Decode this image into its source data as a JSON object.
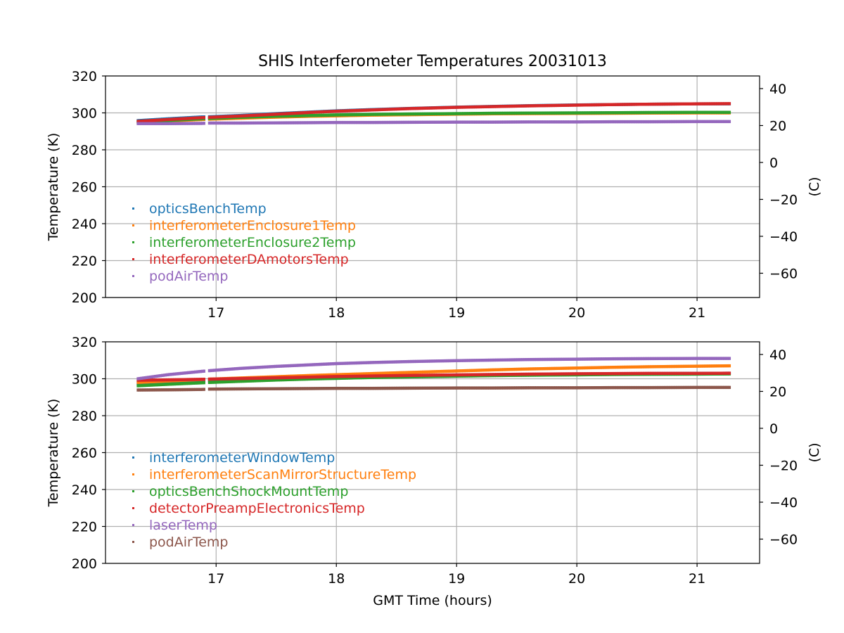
{
  "figure": {
    "title": "SHIS Interferometer Temperatures 20031013",
    "xlabel": "GMT Time (hours)"
  },
  "chart_data": [
    {
      "type": "scatter",
      "title": "SHIS Interferometer Temperatures 20031013",
      "xlabel": "",
      "ylabel": "Temperature (K)",
      "y2label": "(C)",
      "xlim": [
        16.08,
        21.52
      ],
      "ylim": [
        200,
        320
      ],
      "y2lim": [
        -73.15,
        46.85
      ],
      "x_ticks": [
        17,
        18,
        19,
        20,
        21
      ],
      "y_ticks": [
        200,
        220,
        240,
        260,
        280,
        300,
        320
      ],
      "y2_ticks": [
        40,
        20,
        0,
        -20,
        -40,
        -60
      ],
      "grid": true,
      "legend_position": "left",
      "x": [
        16.35,
        16.6,
        16.88,
        16.95,
        17.2,
        17.5,
        17.8,
        18.0,
        18.3,
        18.6,
        19.0,
        19.3,
        19.6,
        20.0,
        20.3,
        20.6,
        21.0,
        21.27
      ],
      "series": [
        {
          "name": "opticsBenchTemp",
          "color": "#1f77b4",
          "values": [
            295.8,
            296.8,
            297.8,
            297.9,
            298.6,
            299.6,
            300.5,
            301.1,
            301.8,
            302.4,
            303.1,
            303.5,
            303.9,
            304.3,
            304.5,
            304.7,
            304.9,
            304.9
          ]
        },
        {
          "name": "interferometerEnclosure1Temp",
          "color": "#ff7f0e",
          "values": [
            294.9,
            295.6,
            296.4,
            296.6,
            297.1,
            297.7,
            298.2,
            298.4,
            298.8,
            299.0,
            299.3,
            299.5,
            299.6,
            299.7,
            299.8,
            299.9,
            300.0,
            300.0
          ]
        },
        {
          "name": "interferometerEnclosure2Temp",
          "color": "#2ca02c",
          "values": [
            295.1,
            295.9,
            296.8,
            297.0,
            297.6,
            298.2,
            298.6,
            298.9,
            299.2,
            299.4,
            299.6,
            299.8,
            299.9,
            300.0,
            300.1,
            300.2,
            300.3,
            300.3
          ]
        },
        {
          "name": "interferometerDAmotorsTemp",
          "color": "#d62728",
          "values": [
            295.4,
            296.4,
            297.4,
            297.6,
            298.3,
            299.3,
            300.3,
            300.9,
            301.6,
            302.3,
            303.0,
            303.4,
            303.8,
            304.2,
            304.5,
            304.7,
            304.9,
            305.0
          ]
        },
        {
          "name": "podAirTemp",
          "color": "#9467bd",
          "values": [
            294.2,
            294.2,
            294.3,
            294.5,
            294.5,
            294.6,
            294.7,
            294.8,
            294.8,
            294.9,
            295.0,
            295.0,
            295.1,
            295.1,
            295.2,
            295.2,
            295.3,
            295.3
          ]
        }
      ]
    },
    {
      "type": "scatter",
      "title": "",
      "xlabel": "GMT Time (hours)",
      "ylabel": "Temperature (K)",
      "y2label": "(C)",
      "xlim": [
        16.08,
        21.52
      ],
      "ylim": [
        200,
        320
      ],
      "y2lim": [
        -73.15,
        46.85
      ],
      "x_ticks": [
        17,
        18,
        19,
        20,
        21
      ],
      "y_ticks": [
        200,
        220,
        240,
        260,
        280,
        300,
        320
      ],
      "y2_ticks": [
        40,
        20,
        0,
        -20,
        -40,
        -60
      ],
      "grid": true,
      "legend_position": "left",
      "x": [
        16.35,
        16.6,
        16.88,
        16.95,
        17.2,
        17.5,
        17.8,
        18.0,
        18.3,
        18.6,
        19.0,
        19.3,
        19.6,
        20.0,
        20.3,
        20.6,
        21.0,
        21.27
      ],
      "series": [
        {
          "name": "interferometerWindowTemp",
          "color": "#1f77b4",
          "values": [
            297.3,
            298.0,
            298.7,
            298.9,
            299.4,
            300.0,
            300.5,
            300.8,
            301.2,
            301.5,
            301.9,
            302.1,
            302.3,
            302.5,
            302.7,
            302.8,
            302.9,
            303.0
          ]
        },
        {
          "name": "interferometerScanMirrorStructureTemp",
          "color": "#ff7f0e",
          "values": [
            298.0,
            298.8,
            299.6,
            299.8,
            300.4,
            301.1,
            301.8,
            302.2,
            302.8,
            303.4,
            304.2,
            304.8,
            305.3,
            305.8,
            306.2,
            306.5,
            306.8,
            307.0
          ]
        },
        {
          "name": "opticsBenchShockMountTemp",
          "color": "#2ca02c",
          "values": [
            296.2,
            297.0,
            297.8,
            298.0,
            298.6,
            299.3,
            299.9,
            300.2,
            300.7,
            301.0,
            301.4,
            301.7,
            301.9,
            302.1,
            302.3,
            302.4,
            302.5,
            302.6
          ]
        },
        {
          "name": "detectorPreampElectronicsTemp",
          "color": "#d62728",
          "values": [
            299.2,
            299.4,
            299.7,
            299.8,
            300.1,
            300.5,
            300.9,
            301.2,
            301.5,
            301.8,
            302.1,
            302.3,
            302.5,
            302.7,
            302.8,
            302.9,
            302.9,
            303.0
          ]
        },
        {
          "name": "laserTemp",
          "color": "#9467bd",
          "values": [
            300.0,
            302.2,
            304.0,
            304.4,
            305.6,
            306.7,
            307.6,
            308.2,
            308.8,
            309.3,
            309.8,
            310.1,
            310.4,
            310.6,
            310.8,
            310.9,
            311.0,
            311.0
          ]
        },
        {
          "name": "podAirTemp",
          "color": "#8c564b",
          "values": [
            293.9,
            294.0,
            294.2,
            294.4,
            294.5,
            294.6,
            294.7,
            294.8,
            294.8,
            294.9,
            295.0,
            295.0,
            295.1,
            295.1,
            295.2,
            295.2,
            295.3,
            295.3
          ]
        }
      ]
    }
  ]
}
